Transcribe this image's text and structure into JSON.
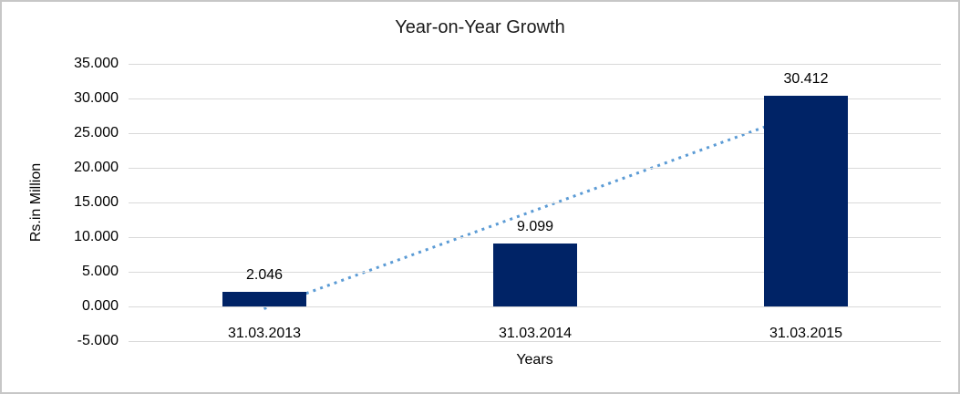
{
  "chart_data": {
    "type": "bar",
    "title": "Year-on-Year Growth",
    "categories": [
      "31.03.2013",
      "31.03.2014",
      "31.03.2015"
    ],
    "values": [
      2.046,
      9.099,
      30.412
    ],
    "data_labels": [
      "2.046",
      "9.099",
      "30.412"
    ],
    "xlabel": "Years",
    "ylabel": "Rs.in Million",
    "ylim": [
      -5,
      35
    ],
    "ytick_step": 5,
    "ytick_labels": [
      "35.000",
      "30.000",
      "25.000",
      "20.000",
      "15.000",
      "10.000",
      "5.000",
      "0.000",
      "-5.000"
    ],
    "grid": true,
    "legend": "none",
    "trendline": {
      "type": "linear",
      "style": "dotted",
      "color": "#5B9BD5"
    },
    "colors": {
      "bar_fill": "#002366",
      "gridline": "#d9d9d9",
      "text": "#000000",
      "border": "#c7c7c7",
      "background": "#ffffff"
    }
  }
}
